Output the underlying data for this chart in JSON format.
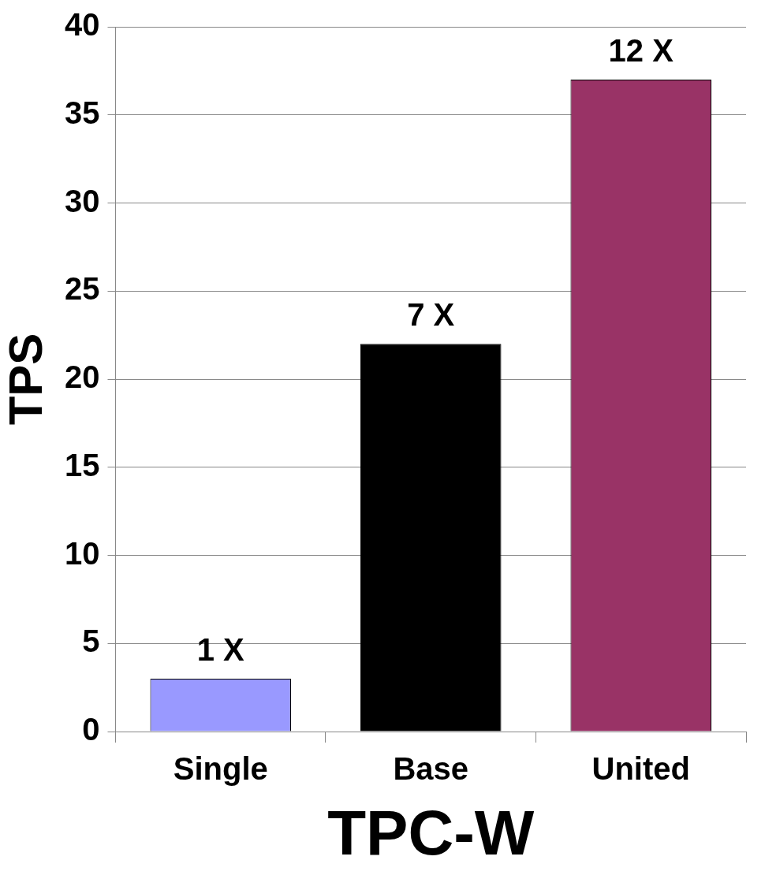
{
  "chart_data": {
    "type": "bar",
    "xlabel": "TPC-W",
    "ylabel": "TPS",
    "categories": [
      "Single",
      "Base",
      "United"
    ],
    "values": [
      3,
      22,
      37
    ],
    "colors": [
      "#9999ff",
      "#000000",
      "#993366"
    ],
    "annotations": [
      {
        "text": "1 X",
        "x": "Single",
        "y": 3
      },
      {
        "text": "7 X",
        "x": "Base",
        "y": 22
      },
      {
        "text": "12 X",
        "x": "United",
        "y": 37
      }
    ],
    "ylim": [
      0,
      40
    ],
    "yticks": [
      0,
      5,
      10,
      15,
      20,
      25,
      30,
      35,
      40
    ],
    "grid": "y",
    "legend": false
  }
}
